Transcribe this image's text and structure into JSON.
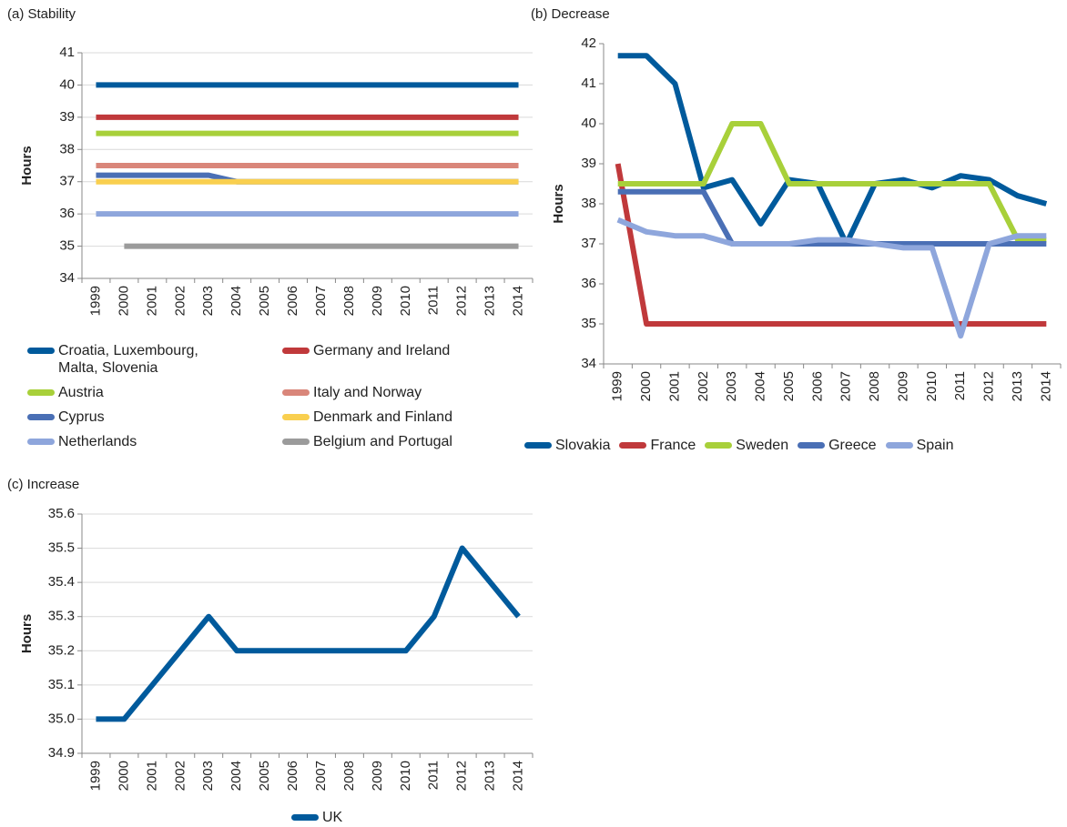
{
  "chart_data": [
    {
      "type": "line",
      "title": "(a) Stability",
      "y_label": "Hours",
      "categories": [
        "1999",
        "2000",
        "2001",
        "2002",
        "2003",
        "2004",
        "2005",
        "2006",
        "2007",
        "2008",
        "2009",
        "2010",
        "2011",
        "2012",
        "2013",
        "2014"
      ],
      "ylim": [
        34,
        41
      ],
      "yticks": [
        34,
        35,
        36,
        37,
        38,
        39,
        40,
        41
      ],
      "grid": true,
      "legend": "bottom",
      "series": [
        {
          "name": "Croatia, Luxembourg, Malta, Slovenia",
          "color": "#005a9c",
          "values": [
            40,
            40,
            40,
            40,
            40,
            40,
            40,
            40,
            40,
            40,
            40,
            40,
            40,
            40,
            40,
            40
          ]
        },
        {
          "name": "Germany and Ireland",
          "color": "#c0393b",
          "values": [
            39,
            39,
            39,
            39,
            39,
            39,
            39,
            39,
            39,
            39,
            39,
            39,
            39,
            39,
            39,
            39
          ]
        },
        {
          "name": "Austria",
          "color": "#a8d03a",
          "values": [
            38.5,
            38.5,
            38.5,
            38.5,
            38.5,
            38.5,
            38.5,
            38.5,
            38.5,
            38.5,
            38.5,
            38.5,
            38.5,
            38.5,
            38.5,
            38.5
          ]
        },
        {
          "name": "Italy and Norway",
          "color": "#d9867a",
          "values": [
            37.5,
            37.5,
            37.5,
            37.5,
            37.5,
            37.5,
            37.5,
            37.5,
            37.5,
            37.5,
            37.5,
            37.5,
            37.5,
            37.5,
            37.5,
            37.5
          ]
        },
        {
          "name": "Cyprus",
          "color": "#4a6fb5",
          "values": [
            37.2,
            37.2,
            37.2,
            37.2,
            37.2,
            37,
            37,
            37,
            37,
            37,
            37,
            37,
            37,
            37,
            37,
            37
          ]
        },
        {
          "name": "Denmark and Finland",
          "color": "#f9cf4f",
          "values": [
            37,
            37,
            37,
            37,
            37,
            37,
            37,
            37,
            37,
            37,
            37,
            37,
            37,
            37,
            37,
            37
          ]
        },
        {
          "name": "Netherlands",
          "color": "#8ea6dc",
          "values": [
            36,
            36,
            36,
            36,
            36,
            36,
            36,
            36,
            36,
            36,
            36,
            36,
            36,
            36,
            36,
            36
          ]
        },
        {
          "name": "Belgium and Portugal",
          "color": "#9b9b9b",
          "values": [
            null,
            35,
            35,
            35,
            35,
            35,
            35,
            35,
            35,
            35,
            35,
            35,
            35,
            35,
            35,
            35
          ]
        }
      ]
    },
    {
      "type": "line",
      "title": "(b) Decrease",
      "y_label": "Hours",
      "categories": [
        "1999",
        "2000",
        "2001",
        "2002",
        "2003",
        "2004",
        "2005",
        "2006",
        "2007",
        "2008",
        "2009",
        "2010",
        "2011",
        "2012",
        "2013",
        "2014"
      ],
      "ylim": [
        34,
        42
      ],
      "yticks": [
        34,
        35,
        36,
        37,
        38,
        39,
        40,
        41,
        42
      ],
      "grid": false,
      "legend": "bottom",
      "series": [
        {
          "name": "Slovakia",
          "color": "#005a9c",
          "values": [
            41.7,
            41.7,
            41.0,
            38.4,
            38.6,
            37.5,
            38.6,
            38.5,
            37.0,
            38.5,
            38.6,
            38.4,
            38.7,
            38.6,
            38.2,
            38.0
          ]
        },
        {
          "name": "France",
          "color": "#c0393b",
          "values": [
            39,
            35,
            35,
            35,
            35,
            35,
            35,
            35,
            35,
            35,
            35,
            35,
            35,
            35,
            35,
            35
          ]
        },
        {
          "name": "Sweden",
          "color": "#a8d03a",
          "values": [
            38.5,
            38.5,
            38.5,
            38.5,
            40,
            40,
            38.5,
            38.5,
            38.5,
            38.5,
            38.5,
            38.5,
            38.5,
            38.5,
            37.1,
            37.1
          ]
        },
        {
          "name": "Greece",
          "color": "#4a6fb5",
          "values": [
            38.3,
            38.3,
            38.3,
            38.3,
            37,
            37,
            37,
            37,
            37,
            37,
            37,
            37,
            37,
            37,
            37,
            37
          ]
        },
        {
          "name": "Spain",
          "color": "#8ea6dc",
          "values": [
            37.6,
            37.3,
            37.2,
            37.2,
            37.0,
            37.0,
            37.0,
            37.1,
            37.1,
            37.0,
            36.9,
            36.9,
            34.7,
            37.0,
            37.2,
            37.2
          ]
        }
      ]
    },
    {
      "type": "line",
      "title": "(c) Increase",
      "y_label": "Hours",
      "categories": [
        "1999",
        "2000",
        "2001",
        "2002",
        "2003",
        "2004",
        "2005",
        "2006",
        "2007",
        "2008",
        "2009",
        "2010",
        "2011",
        "2012",
        "2013",
        "2014"
      ],
      "ylim": [
        34.9,
        35.6
      ],
      "yticks": [
        34.9,
        {
          "value": 35,
          "label": "35.0"
        },
        35.1,
        35.2,
        35.3,
        35.4,
        35.5,
        35.6
      ],
      "grid": true,
      "legend": "bottom",
      "series": [
        {
          "name": "UK",
          "color": "#005a9c",
          "values": [
            35.0,
            35.0,
            35.1,
            35.2,
            35.3,
            35.2,
            35.2,
            35.2,
            35.2,
            35.2,
            35.2,
            35.2,
            35.3,
            35.5,
            35.4,
            35.3
          ]
        }
      ]
    }
  ]
}
